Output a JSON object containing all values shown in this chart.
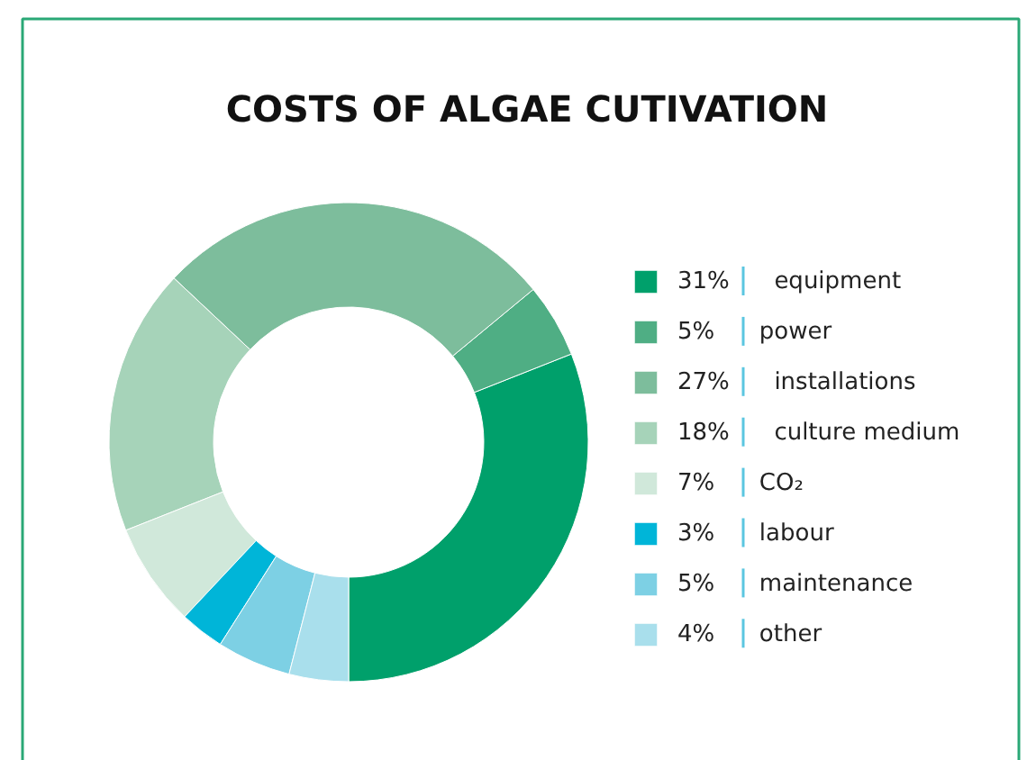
{
  "chart_data": {
    "type": "donut",
    "title": "COSTS OF ALGAE CUTIVATION",
    "categories": [
      "equipment",
      "power",
      "installations",
      "culture medium",
      "CO₂",
      "labour",
      "maintenance",
      "other"
    ],
    "values": [
      31,
      5,
      27,
      18,
      7,
      3,
      5,
      4
    ],
    "colors": [
      "#00a06b",
      "#4fae84",
      "#7dbd9c",
      "#a6d3b9",
      "#d0e8da",
      "#00b5d8",
      "#7dd0e4",
      "#a9dfec"
    ],
    "value_labels": [
      "31%",
      "5%",
      "27%",
      "18%",
      "7%",
      "3%",
      "5%",
      "4%"
    ],
    "legend": "right"
  }
}
